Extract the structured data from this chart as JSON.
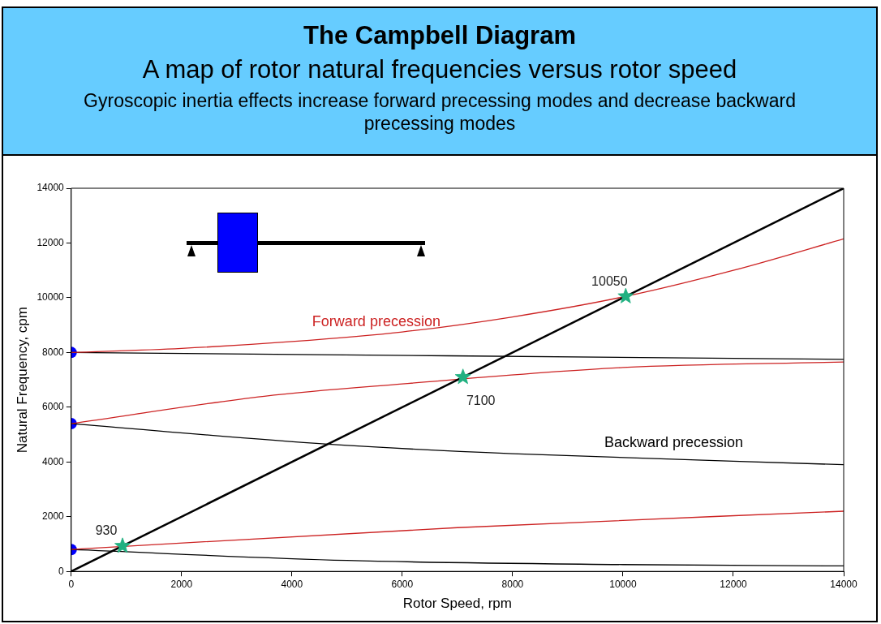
{
  "chart_data": {
    "type": "line",
    "title": "The Campbell Diagram",
    "subtitle": "A map of rotor natural frequencies versus rotor speed",
    "xlabel": "Rotor Speed, rpm",
    "ylabel": "Natural Frequency, cpm",
    "annotations": [
      "Gyroscopic inertia effects increase forward  precessing modes and decrease backward precessing modes",
      "Forward precession",
      "Backward precession"
    ],
    "xlim": [
      0,
      14000
    ],
    "xticks": [
      0,
      2000,
      4000,
      6000,
      8000,
      10000,
      12000,
      14000
    ],
    "ylim": [
      0,
      14000
    ],
    "yticks": [
      0,
      2000,
      4000,
      6000,
      8000,
      10000,
      12000,
      14000
    ],
    "grid": false,
    "legend": false,
    "marker": "none",
    "line_style": "solid",
    "series": [
      {
        "color": "#000000",
        "x": [
          0,
          14000
        ],
        "values": [
          0,
          14000
        ]
      },
      {
        "color": "#cc2222",
        "x": [
          0,
          2000,
          4000,
          6000,
          8000,
          10050,
          12000,
          14000
        ],
        "values": [
          8000,
          8150,
          8400,
          8750,
          9300,
          10050,
          11000,
          12150
        ]
      },
      {
        "color": "#000000",
        "x": [
          0,
          14000
        ],
        "values": [
          8000,
          7750
        ]
      },
      {
        "color": "#cc2222",
        "x": [
          0,
          3500,
          6000,
          10000,
          14000
        ],
        "values": [
          5400,
          6400,
          6850,
          7450,
          7650
        ]
      },
      {
        "color": "#000000",
        "x": [
          0,
          4650,
          8000,
          14000
        ],
        "values": [
          5400,
          4650,
          4300,
          3900
        ]
      },
      {
        "color": "#cc2222",
        "x": [
          0,
          7000,
          14000
        ],
        "values": [
          800,
          1600,
          2200
        ]
      },
      {
        "color": "#000000",
        "x": [
          0,
          5000,
          10000,
          14000
        ],
        "values": [
          800,
          400,
          250,
          200
        ]
      },
      {
        "type": "scatter",
        "marker": "circle",
        "color": "#0000ff",
        "x": [
          0,
          0,
          0
        ],
        "values": [
          8000,
          5400,
          800
        ]
      },
      {
        "type": "scatter",
        "marker": "star",
        "color": "#20b080",
        "x": [
          930,
          7100,
          10050
        ],
        "values": [
          930,
          7100,
          10050
        ],
        "value_labels": [
          "930",
          "7100",
          "10050"
        ]
      }
    ]
  }
}
